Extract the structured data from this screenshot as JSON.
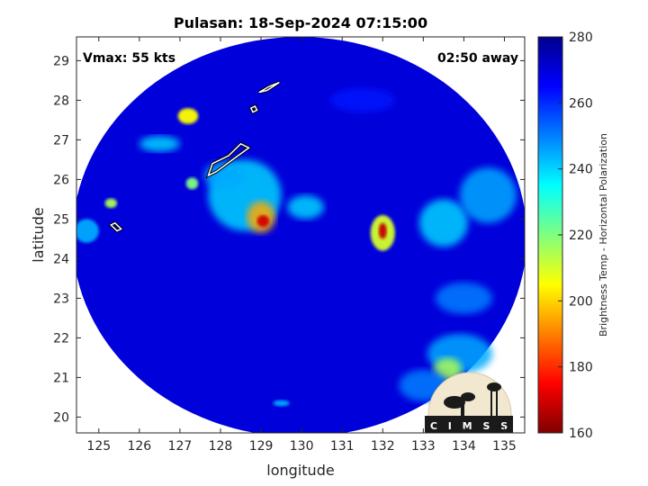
{
  "chart_data": {
    "type": "heatmap",
    "title": "Pulasan: 18-Sep-2024 07:15:00",
    "xlabel": "longitude",
    "ylabel": "latitude",
    "xlim": [
      124.45,
      135.5
    ],
    "ylim": [
      19.6,
      29.6
    ],
    "xticks": [
      125,
      126,
      127,
      128,
      129,
      130,
      131,
      132,
      133,
      134,
      135
    ],
    "yticks": [
      20,
      21,
      22,
      23,
      24,
      25,
      26,
      27,
      28,
      29
    ],
    "annotations": {
      "vmax": "Vmax: 55 kts",
      "away": "02:50 away"
    },
    "swath": {
      "center": [
        129.95,
        24.55
      ],
      "radius_deg": [
        5.6,
        5.05
      ]
    },
    "colorbar": {
      "label": "Brightness Temp - Horizontal Polarization",
      "min": 160,
      "max": 280,
      "ticks": [
        160,
        180,
        200,
        220,
        240,
        260,
        280
      ],
      "colormap": [
        "#7f0000",
        "#ff0000",
        "#ff7f00",
        "#ffff00",
        "#7fff7f",
        "#00ffff",
        "#007fff",
        "#0000ff",
        "#00008f"
      ]
    },
    "background_value": 270,
    "features": [
      {
        "lon": 128.6,
        "lat": 25.6,
        "dlon": 0.9,
        "dlat": 0.9,
        "value": 240
      },
      {
        "lon": 129.0,
        "lat": 25.05,
        "dlon": 0.35,
        "dlat": 0.4,
        "value": 195
      },
      {
        "lon": 129.05,
        "lat": 24.95,
        "dlon": 0.15,
        "dlat": 0.15,
        "value": 170
      },
      {
        "lon": 128.1,
        "lat": 26.1,
        "dlon": 0.5,
        "dlat": 0.35,
        "value": 245
      },
      {
        "lon": 130.1,
        "lat": 25.3,
        "dlon": 0.45,
        "dlat": 0.3,
        "value": 240
      },
      {
        "lon": 132.0,
        "lat": 24.65,
        "dlon": 0.3,
        "dlat": 0.45,
        "value": 210
      },
      {
        "lon": 132.0,
        "lat": 24.7,
        "dlon": 0.1,
        "dlat": 0.2,
        "value": 168
      },
      {
        "lon": 127.2,
        "lat": 27.6,
        "dlon": 0.25,
        "dlat": 0.2,
        "value": 205
      },
      {
        "lon": 126.5,
        "lat": 26.9,
        "dlon": 0.5,
        "dlat": 0.2,
        "value": 240
      },
      {
        "lon": 127.3,
        "lat": 25.9,
        "dlon": 0.15,
        "dlat": 0.15,
        "value": 220
      },
      {
        "lon": 125.3,
        "lat": 25.4,
        "dlon": 0.15,
        "dlat": 0.12,
        "value": 215
      },
      {
        "lon": 133.5,
        "lat": 24.9,
        "dlon": 0.6,
        "dlat": 0.6,
        "value": 240
      },
      {
        "lon": 134.6,
        "lat": 25.6,
        "dlon": 0.7,
        "dlat": 0.7,
        "value": 245
      },
      {
        "lon": 133.9,
        "lat": 21.6,
        "dlon": 0.8,
        "dlat": 0.5,
        "value": 245
      },
      {
        "lon": 133.6,
        "lat": 21.2,
        "dlon": 0.35,
        "dlat": 0.3,
        "value": 215
      },
      {
        "lon": 134.0,
        "lat": 23.0,
        "dlon": 0.7,
        "dlat": 0.4,
        "value": 250
      },
      {
        "lon": 133.0,
        "lat": 20.8,
        "dlon": 0.6,
        "dlat": 0.4,
        "value": 250
      },
      {
        "lon": 129.5,
        "lat": 20.35,
        "dlon": 0.2,
        "dlat": 0.08,
        "value": 245
      },
      {
        "lon": 124.7,
        "lat": 24.7,
        "dlon": 0.3,
        "dlat": 0.3,
        "value": 245
      },
      {
        "lon": 131.5,
        "lat": 28.0,
        "dlon": 0.8,
        "dlat": 0.3,
        "value": 262
      }
    ],
    "contours": [
      {
        "value": 270,
        "points": [
          [
            129.45,
            28.45
          ],
          [
            129.15,
            28.25
          ],
          [
            128.95,
            28.2
          ],
          [
            129.2,
            28.35
          ]
        ]
      },
      {
        "value": 270,
        "points": [
          [
            128.85,
            27.85
          ],
          [
            128.9,
            27.75
          ],
          [
            128.8,
            27.7
          ],
          [
            128.75,
            27.8
          ]
        ]
      },
      {
        "value": 270,
        "points": [
          [
            127.7,
            26.1
          ],
          [
            127.8,
            26.4
          ],
          [
            128.2,
            26.6
          ],
          [
            128.5,
            26.9
          ],
          [
            128.7,
            26.8
          ],
          [
            128.3,
            26.5
          ],
          [
            127.9,
            26.2
          ]
        ]
      },
      {
        "value": 270,
        "points": [
          [
            125.3,
            24.85
          ],
          [
            125.45,
            24.7
          ],
          [
            125.55,
            24.75
          ],
          [
            125.4,
            24.9
          ]
        ]
      }
    ],
    "logo": "C I M S S"
  }
}
